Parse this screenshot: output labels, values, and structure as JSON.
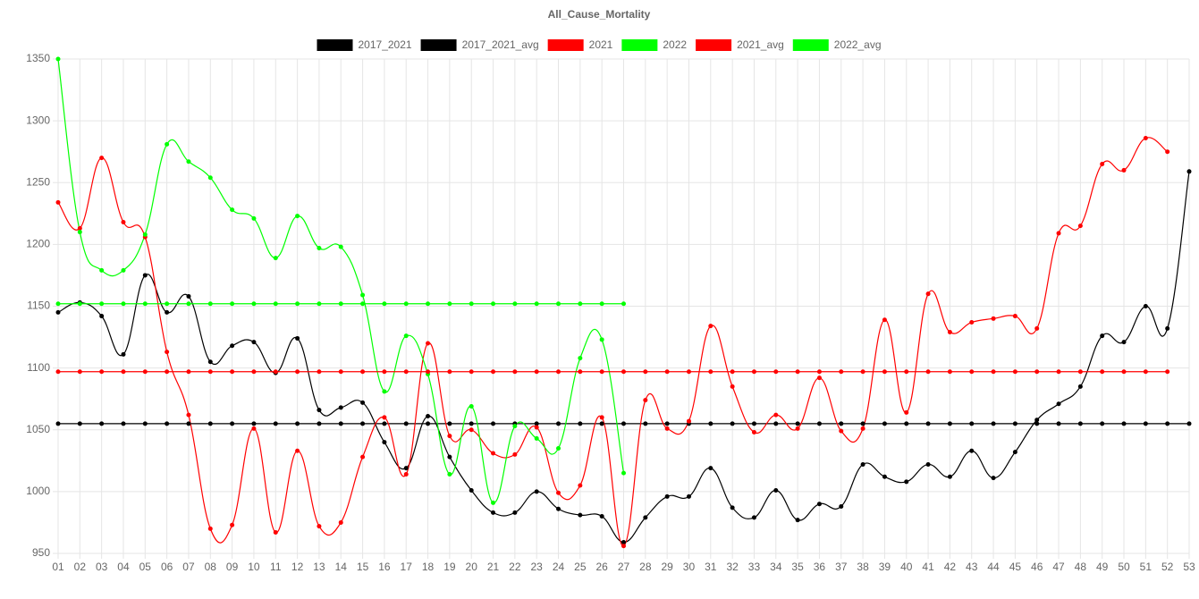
{
  "chart_data": {
    "type": "line",
    "title": "All_Cause_Mortality",
    "categories": [
      "01",
      "02",
      "03",
      "04",
      "05",
      "06",
      "07",
      "08",
      "09",
      "10",
      "11",
      "12",
      "13",
      "14",
      "15",
      "16",
      "17",
      "18",
      "19",
      "20",
      "21",
      "22",
      "23",
      "24",
      "25",
      "26",
      "27",
      "28",
      "29",
      "30",
      "31",
      "32",
      "33",
      "34",
      "35",
      "36",
      "37",
      "38",
      "39",
      "40",
      "41",
      "42",
      "43",
      "44",
      "45",
      "46",
      "47",
      "48",
      "49",
      "50",
      "51",
      "52",
      "53"
    ],
    "series": [
      {
        "name": "2017_2021",
        "color": "#000000",
        "values": [
          1145,
          1153,
          1142,
          1111,
          1175,
          1145,
          1158,
          1105,
          1118,
          1121,
          1096,
          1124,
          1066,
          1068,
          1072,
          1040,
          1019,
          1061,
          1028,
          1001,
          983,
          983,
          1000,
          986,
          981,
          980,
          959,
          979,
          996,
          996,
          1019,
          987,
          979,
          1001,
          977,
          990,
          988,
          1022,
          1012,
          1008,
          1022,
          1012,
          1033,
          1011,
          1032,
          1058,
          1071,
          1085,
          1126,
          1121,
          1150,
          1132,
          1259
        ]
      },
      {
        "name": "2017_2021_avg",
        "color": "#000000",
        "values": [
          1055,
          1055,
          1055,
          1055,
          1055,
          1055,
          1055,
          1055,
          1055,
          1055,
          1055,
          1055,
          1055,
          1055,
          1055,
          1055,
          1055,
          1055,
          1055,
          1055,
          1055,
          1055,
          1055,
          1055,
          1055,
          1055,
          1055,
          1055,
          1055,
          1055,
          1055,
          1055,
          1055,
          1055,
          1055,
          1055,
          1055,
          1055,
          1055,
          1055,
          1055,
          1055,
          1055,
          1055,
          1055,
          1055,
          1055,
          1055,
          1055,
          1055,
          1055,
          1055,
          1055
        ]
      },
      {
        "name": "2021",
        "color": "#ff0000",
        "values": [
          1234,
          1213,
          1270,
          1218,
          1206,
          1113,
          1062,
          970,
          973,
          1051,
          967,
          1033,
          972,
          975,
          1028,
          1060,
          1014,
          1120,
          1045,
          1050,
          1031,
          1030,
          1052,
          999,
          1005,
          1060,
          956,
          1074,
          1051,
          1057,
          1134,
          1085,
          1048,
          1062,
          1051,
          1092,
          1049,
          1051,
          1139,
          1064,
          1160,
          1129,
          1137,
          1140,
          1142,
          1132,
          1209,
          1215,
          1265,
          1260,
          1286,
          1275,
          null
        ]
      },
      {
        "name": "2022",
        "color": "#00ff00",
        "values": [
          1350,
          1210,
          1179,
          1179,
          1208,
          1281,
          1267,
          1254,
          1228,
          1221,
          1189,
          1223,
          1197,
          1198,
          1159,
          1081,
          1126,
          1095,
          1014,
          1069,
          991,
          1053,
          1043,
          1035,
          1108,
          1123,
          1015,
          null,
          null,
          null,
          null,
          null,
          null,
          null,
          null,
          null,
          null,
          null,
          null,
          null,
          null,
          null,
          null,
          null,
          null,
          null,
          null,
          null,
          null,
          null,
          null,
          null,
          null
        ]
      },
      {
        "name": "2021_avg",
        "color": "#ff0000",
        "values": [
          1097,
          1097,
          1097,
          1097,
          1097,
          1097,
          1097,
          1097,
          1097,
          1097,
          1097,
          1097,
          1097,
          1097,
          1097,
          1097,
          1097,
          1097,
          1097,
          1097,
          1097,
          1097,
          1097,
          1097,
          1097,
          1097,
          1097,
          1097,
          1097,
          1097,
          1097,
          1097,
          1097,
          1097,
          1097,
          1097,
          1097,
          1097,
          1097,
          1097,
          1097,
          1097,
          1097,
          1097,
          1097,
          1097,
          1097,
          1097,
          1097,
          1097,
          1097,
          1097,
          null
        ]
      },
      {
        "name": "2022_avg",
        "color": "#00ff00",
        "values": [
          1152,
          1152,
          1152,
          1152,
          1152,
          1152,
          1152,
          1152,
          1152,
          1152,
          1152,
          1152,
          1152,
          1152,
          1152,
          1152,
          1152,
          1152,
          1152,
          1152,
          1152,
          1152,
          1152,
          1152,
          1152,
          1152,
          1152,
          null,
          null,
          null,
          null,
          null,
          null,
          null,
          null,
          null,
          null,
          null,
          null,
          null,
          null,
          null,
          null,
          null,
          null,
          null,
          null,
          null,
          null,
          null,
          null,
          null,
          null
        ]
      }
    ],
    "ylim": [
      950,
      1350
    ],
    "yticks": [
      950,
      1000,
      1050,
      1100,
      1150,
      1200,
      1250,
      1300,
      1350
    ],
    "grid": true,
    "legend": "top"
  }
}
